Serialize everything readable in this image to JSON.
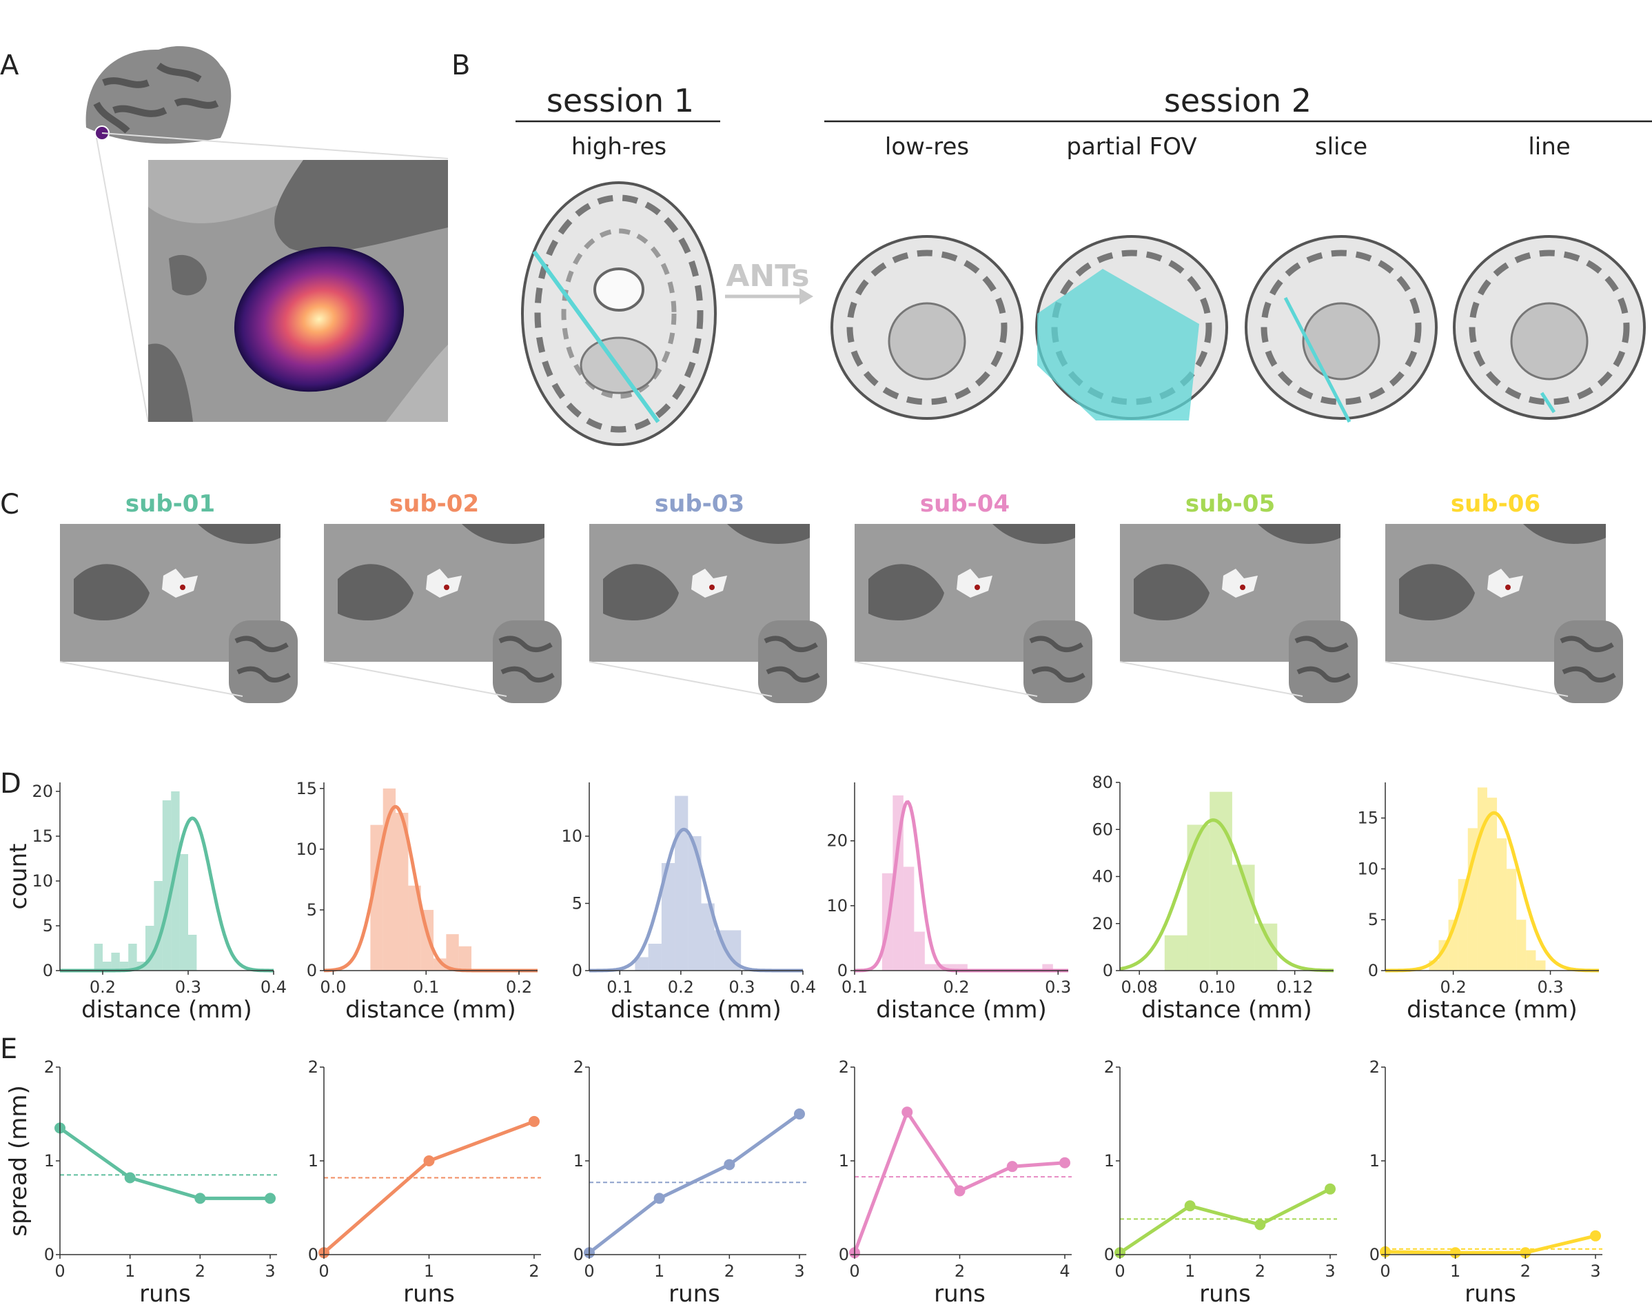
{
  "panel_labels": {
    "A": "A",
    "B": "B",
    "C": "C",
    "D": "D",
    "E": "E"
  },
  "panel_b": {
    "session1": {
      "title": "session 1",
      "columns": [
        "high-res"
      ]
    },
    "session2": {
      "title": "session 2",
      "columns": [
        "low-res",
        "partial FOV",
        "slice",
        "line"
      ]
    },
    "arrow_label": "ANTs"
  },
  "subjects": [
    {
      "id": "sub-01",
      "color": "#5fbf9f"
    },
    {
      "id": "sub-02",
      "color": "#f28c62"
    },
    {
      "id": "sub-03",
      "color": "#8da0cb"
    },
    {
      "id": "sub-04",
      "color": "#e78ac3"
    },
    {
      "id": "sub-05",
      "color": "#a6d854"
    },
    {
      "id": "sub-06",
      "color": "#ffd92f"
    }
  ],
  "colors": {
    "brain_light": "#9c9c9c",
    "brain_dark": "#606060",
    "line_cyan": "#5cd6d6",
    "ants_gray": "#c8c8c8"
  },
  "chart_data": [
    {
      "type": "bar",
      "subject": "sub-01",
      "xlabel": "distance (mm)",
      "ylabel": "count",
      "xlim": [
        0.15,
        0.4
      ],
      "ylim": [
        0,
        21
      ],
      "xticks": [
        {
          "v": 0.2,
          "t": "0.2"
        },
        {
          "v": 0.3,
          "t": "0.3"
        },
        {
          "v": 0.4,
          "t": "0.4"
        }
      ],
      "yticks": [
        {
          "v": 0,
          "t": "0"
        },
        {
          "v": 5,
          "t": "5"
        },
        {
          "v": 10,
          "t": "10"
        },
        {
          "v": 15,
          "t": "15"
        },
        {
          "v": 20,
          "t": "20"
        }
      ],
      "bins_start": 0.19,
      "bin_width": 0.01,
      "values": [
        3,
        1,
        2,
        1,
        3,
        1,
        5,
        10,
        19,
        20,
        13,
        4
      ],
      "kde_mean": 0.305,
      "kde_sd": 0.022,
      "kde_peak": 17
    },
    {
      "type": "bar",
      "subject": "sub-02",
      "xlabel": "distance (mm)",
      "ylabel": "",
      "xlim": [
        -0.01,
        0.22
      ],
      "ylim": [
        0,
        15.5
      ],
      "xticks": [
        {
          "v": 0.0,
          "t": "0.0"
        },
        {
          "v": 0.1,
          "t": "0.1"
        },
        {
          "v": 0.2,
          "t": "0.2"
        }
      ],
      "yticks": [
        {
          "v": 0,
          "t": "0"
        },
        {
          "v": 5,
          "t": "5"
        },
        {
          "v": 10,
          "t": "10"
        },
        {
          "v": 15,
          "t": "15"
        }
      ],
      "bins_start": 0.04,
      "bin_width": 0.0136,
      "values": [
        12,
        15,
        13,
        7,
        5,
        1,
        3,
        2
      ],
      "kde_mean": 0.067,
      "kde_sd": 0.02,
      "kde_peak": 13.5
    },
    {
      "type": "bar",
      "subject": "sub-03",
      "xlabel": "distance (mm)",
      "ylabel": "",
      "xlim": [
        0.05,
        0.4
      ],
      "ylim": [
        0,
        14
      ],
      "xticks": [
        {
          "v": 0.1,
          "t": "0.1"
        },
        {
          "v": 0.2,
          "t": "0.2"
        },
        {
          "v": 0.3,
          "t": "0.3"
        },
        {
          "v": 0.4,
          "t": "0.4"
        }
      ],
      "yticks": [
        {
          "v": 0,
          "t": "0"
        },
        {
          "v": 5,
          "t": "5"
        },
        {
          "v": 10,
          "t": "10"
        }
      ],
      "bins_start": 0.125,
      "bin_width": 0.0217,
      "values": [
        1,
        2,
        8,
        13,
        10,
        5,
        3,
        3
      ],
      "kde_mean": 0.205,
      "kde_sd": 0.035,
      "kde_peak": 10.5
    },
    {
      "type": "bar",
      "subject": "sub-04",
      "xlabel": "distance (mm)",
      "ylabel": "",
      "xlim": [
        0.1,
        0.31
      ],
      "ylim": [
        0,
        29
      ],
      "xticks": [
        {
          "v": 0.1,
          "t": "0.1"
        },
        {
          "v": 0.2,
          "t": "0.2"
        },
        {
          "v": 0.3,
          "t": "0.3"
        }
      ],
      "yticks": [
        {
          "v": 0,
          "t": "0"
        },
        {
          "v": 10,
          "t": "10"
        },
        {
          "v": 20,
          "t": "20"
        }
      ],
      "bins_start": 0.127,
      "bin_width": 0.0105,
      "values": [
        15,
        27,
        16,
        6,
        1,
        1,
        1,
        1,
        0,
        0,
        0,
        0,
        0,
        0,
        0,
        1
      ],
      "kde_mean": 0.152,
      "kde_sd": 0.012,
      "kde_peak": 26
    },
    {
      "type": "bar",
      "subject": "sub-05",
      "xlabel": "distance (mm)",
      "ylabel": "",
      "xlim": [
        0.075,
        0.13
      ],
      "ylim": [
        0,
        80
      ],
      "xticks": [
        {
          "v": 0.08,
          "t": "0.08"
        },
        {
          "v": 0.1,
          "t": "0.10"
        },
        {
          "v": 0.12,
          "t": "0.12"
        }
      ],
      "yticks": [
        {
          "v": 0,
          "t": "0"
        },
        {
          "v": 20,
          "t": "20"
        },
        {
          "v": 40,
          "t": "40"
        },
        {
          "v": 60,
          "t": "60"
        },
        {
          "v": 80,
          "t": "80"
        }
      ],
      "bins_start": 0.0865,
      "bin_width": 0.0058,
      "values": [
        15,
        62,
        76,
        45,
        20
      ],
      "kde_mean": 0.099,
      "kde_sd": 0.008,
      "kde_peak": 64
    },
    {
      "type": "bar",
      "subject": "sub-06",
      "xlabel": "distance (mm)",
      "ylabel": "",
      "xlim": [
        0.13,
        0.35
      ],
      "ylim": [
        0,
        18.5
      ],
      "xticks": [
        {
          "v": 0.2,
          "t": "0.2"
        },
        {
          "v": 0.3,
          "t": "0.3"
        }
      ],
      "yticks": [
        {
          "v": 0,
          "t": "0"
        },
        {
          "v": 5,
          "t": "5"
        },
        {
          "v": 10,
          "t": "10"
        },
        {
          "v": 15,
          "t": "15"
        }
      ],
      "bins_start": 0.175,
      "bin_width": 0.01,
      "values": [
        1,
        3,
        5,
        9,
        14,
        18,
        17,
        13,
        10,
        5,
        2,
        1
      ],
      "kde_mean": 0.242,
      "kde_sd": 0.026,
      "kde_peak": 15.5
    },
    {
      "type": "line",
      "subject": "sub-01",
      "xlabel": "runs",
      "ylabel": "spread (mm)",
      "xlim": [
        0,
        3
      ],
      "ylim": [
        0,
        2
      ],
      "x": [
        0,
        1,
        2,
        3
      ],
      "y": [
        1.35,
        0.82,
        0.6,
        0.6
      ],
      "mean": 0.85,
      "xticks": [
        0,
        1,
        2,
        3
      ],
      "yticks": [
        0,
        1,
        2
      ]
    },
    {
      "type": "line",
      "subject": "sub-02",
      "xlabel": "runs",
      "ylabel": "",
      "xlim": [
        0,
        2
      ],
      "ylim": [
        0,
        2
      ],
      "x": [
        0,
        1,
        2
      ],
      "y": [
        0.02,
        1.0,
        1.42
      ],
      "mean": 0.82,
      "xticks": [
        0,
        1,
        2
      ],
      "yticks": [
        0,
        1,
        2
      ]
    },
    {
      "type": "line",
      "subject": "sub-03",
      "xlabel": "runs",
      "ylabel": "",
      "xlim": [
        0,
        3
      ],
      "ylim": [
        0,
        2
      ],
      "x": [
        0,
        1,
        2,
        3
      ],
      "y": [
        0.02,
        0.6,
        0.96,
        1.5
      ],
      "mean": 0.77,
      "xticks": [
        0,
        1,
        2,
        3
      ],
      "yticks": [
        0,
        1,
        2
      ]
    },
    {
      "type": "line",
      "subject": "sub-04",
      "xlabel": "runs",
      "ylabel": "",
      "xlim": [
        0,
        4
      ],
      "ylim": [
        0,
        2
      ],
      "x": [
        0,
        1,
        2,
        3,
        4
      ],
      "y": [
        0.02,
        1.52,
        0.68,
        0.94,
        0.98
      ],
      "mean": 0.83,
      "xticks": [
        0,
        2,
        4
      ],
      "yticks": [
        0,
        1,
        2
      ]
    },
    {
      "type": "line",
      "subject": "sub-05",
      "xlabel": "runs",
      "ylabel": "",
      "xlim": [
        0,
        3
      ],
      "ylim": [
        0,
        2
      ],
      "x": [
        0,
        1,
        2,
        3
      ],
      "y": [
        0.02,
        0.52,
        0.32,
        0.7
      ],
      "mean": 0.38,
      "xticks": [
        0,
        1,
        2,
        3
      ],
      "yticks": [
        0,
        1,
        2
      ]
    },
    {
      "type": "line",
      "subject": "sub-06",
      "xlabel": "runs",
      "ylabel": "",
      "xlim": [
        0,
        3
      ],
      "ylim": [
        0,
        2
      ],
      "x": [
        0,
        1,
        2,
        3
      ],
      "y": [
        0.03,
        0.02,
        0.02,
        0.2
      ],
      "mean": 0.06,
      "xticks": [
        0,
        1,
        2,
        3
      ],
      "yticks": [
        0,
        1,
        2
      ]
    }
  ]
}
